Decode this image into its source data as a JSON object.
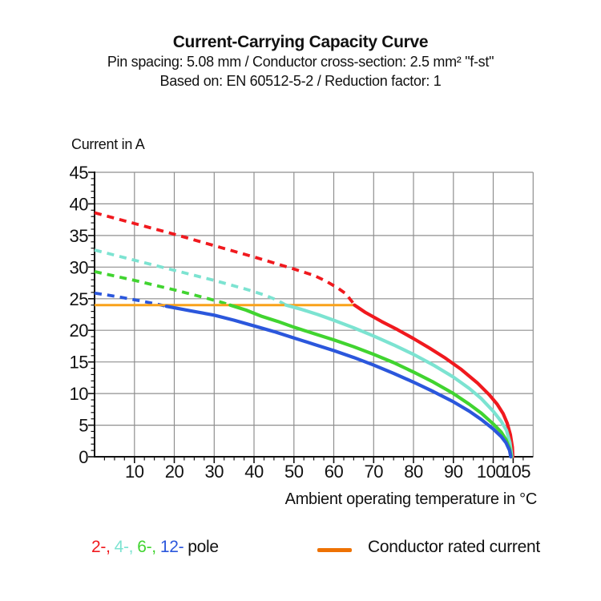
{
  "header": {
    "title": "Current-Carrying Capacity Curve",
    "subtitle1": "Pin spacing: 5.08 mm / Conductor cross-section: 2.5 mm² \"f-st\"",
    "subtitle2": "Based on: EN 60512-5-2 / Reduction factor: 1"
  },
  "chart_data": {
    "type": "line",
    "title": "Current-Carrying Capacity Curve",
    "xlabel": "Ambient operating temperature in °C",
    "ylabel": "Current in A",
    "xlim": [
      0,
      110
    ],
    "ylim": [
      0,
      45
    ],
    "grid": true,
    "grid_color": "#8F8F8F",
    "axis_color": "#111111",
    "x_gridlines": [
      10,
      20,
      30,
      40,
      50,
      60,
      70,
      80,
      90,
      100
    ],
    "x_major_ticks": [
      10,
      20,
      30,
      40,
      50,
      60,
      70,
      80,
      90,
      100,
      105
    ],
    "x_tick_labels": [
      "10",
      "20",
      "30",
      "40",
      "50",
      "60",
      "70",
      "80",
      "90",
      "100",
      "105"
    ],
    "x_minor_step": 2.5,
    "y_gridlines": [
      5,
      10,
      15,
      20,
      25,
      30,
      35,
      40,
      45
    ],
    "y_major_ticks": [
      0,
      5,
      10,
      15,
      20,
      25,
      30,
      35,
      40,
      45
    ],
    "y_tick_labels": [
      "0",
      "5",
      "10",
      "15",
      "20",
      "25",
      "30",
      "35",
      "40",
      "45"
    ],
    "y_minor_step": 1,
    "rated_current": {
      "value": 24,
      "x_start": 0,
      "x_end": 65,
      "color": "#F9A21B",
      "label": "Conductor rated current"
    },
    "series": [
      {
        "name": "2-pole",
        "color": "#F0191E",
        "dashed": [
          [
            0,
            38.6
          ],
          [
            10,
            36.9
          ],
          [
            20,
            35.2
          ],
          [
            30,
            33.4
          ],
          [
            40,
            31.6
          ],
          [
            50,
            29.7
          ],
          [
            55,
            28.7
          ],
          [
            58,
            27.8
          ],
          [
            61,
            26.7
          ],
          [
            63,
            25.8
          ],
          [
            64.5,
            24.6
          ],
          [
            65.2,
            24.0
          ]
        ],
        "solid": [
          [
            65.2,
            24.0
          ],
          [
            68,
            22.8
          ],
          [
            72,
            21.4
          ],
          [
            76,
            20.1
          ],
          [
            80,
            18.7
          ],
          [
            84,
            17.2
          ],
          [
            88,
            15.6
          ],
          [
            92,
            13.8
          ],
          [
            96,
            11.7
          ],
          [
            99,
            9.8
          ],
          [
            101,
            8.3
          ],
          [
            102.5,
            6.8
          ],
          [
            103.5,
            5.3
          ],
          [
            104.3,
            3.5
          ],
          [
            104.8,
            1.5
          ],
          [
            104.9,
            0
          ]
        ]
      },
      {
        "name": "4-pole",
        "color": "#7CE3D1",
        "dashed": [
          [
            0,
            32.7
          ],
          [
            10,
            31.1
          ],
          [
            20,
            29.5
          ],
          [
            30,
            27.9
          ],
          [
            38,
            26.5
          ],
          [
            43,
            25.5
          ],
          [
            46,
            24.7
          ],
          [
            48,
            24.0
          ]
        ],
        "solid": [
          [
            48,
            24.0
          ],
          [
            52,
            23.3
          ],
          [
            56,
            22.5
          ],
          [
            60,
            21.6
          ],
          [
            65,
            20.4
          ],
          [
            70,
            19.1
          ],
          [
            75,
            17.7
          ],
          [
            80,
            16.2
          ],
          [
            85,
            14.5
          ],
          [
            90,
            12.6
          ],
          [
            94,
            10.8
          ],
          [
            97,
            9.2
          ],
          [
            100,
            7.2
          ],
          [
            102,
            5.6
          ],
          [
            103.3,
            4.2
          ],
          [
            104.2,
            2.2
          ],
          [
            104.65,
            0
          ]
        ]
      },
      {
        "name": "6-pole",
        "color": "#41D430",
        "dashed": [
          [
            0,
            29.3
          ],
          [
            10,
            27.9
          ],
          [
            20,
            26.4
          ],
          [
            28,
            25.1
          ],
          [
            32,
            24.4
          ],
          [
            34,
            24.0
          ]
        ],
        "solid": [
          [
            34,
            24.0
          ],
          [
            38,
            23.2
          ],
          [
            42,
            22.2
          ],
          [
            46,
            21.4
          ],
          [
            50,
            20.5
          ],
          [
            55,
            19.5
          ],
          [
            60,
            18.5
          ],
          [
            65,
            17.4
          ],
          [
            70,
            16.2
          ],
          [
            75,
            14.9
          ],
          [
            80,
            13.4
          ],
          [
            85,
            11.8
          ],
          [
            90,
            10.0
          ],
          [
            94,
            8.3
          ],
          [
            97,
            6.9
          ],
          [
            100,
            5.2
          ],
          [
            102,
            3.9
          ],
          [
            103.2,
            2.7
          ],
          [
            104.1,
            1.3
          ],
          [
            104.5,
            0
          ]
        ]
      },
      {
        "name": "12-pole",
        "color": "#2B57DC",
        "dashed": [
          [
            0,
            25.9
          ],
          [
            6,
            25.3
          ],
          [
            12,
            24.6
          ],
          [
            16,
            24.1
          ],
          [
            18,
            23.8
          ]
        ],
        "solid": [
          [
            18,
            23.8
          ],
          [
            24,
            23.1
          ],
          [
            30,
            22.4
          ],
          [
            35,
            21.6
          ],
          [
            40,
            20.7
          ],
          [
            45,
            19.8
          ],
          [
            50,
            18.8
          ],
          [
            55,
            17.8
          ],
          [
            60,
            16.8
          ],
          [
            65,
            15.7
          ],
          [
            70,
            14.5
          ],
          [
            75,
            13.2
          ],
          [
            80,
            11.8
          ],
          [
            85,
            10.3
          ],
          [
            90,
            8.7
          ],
          [
            94,
            7.2
          ],
          [
            97,
            5.9
          ],
          [
            100,
            4.4
          ],
          [
            102,
            3.2
          ],
          [
            103.2,
            2.2
          ],
          [
            104.1,
            1.0
          ],
          [
            104.4,
            0
          ]
        ]
      }
    ]
  },
  "legend": {
    "pole_segments": [
      {
        "text": "2-,",
        "color": "#F0191E"
      },
      {
        "text": "4-,",
        "color": "#7CE3D1"
      },
      {
        "text": "6-,",
        "color": "#41D430"
      },
      {
        "text": "12-",
        "color": "#2B57DC"
      },
      {
        "text": "pole",
        "color": "#111111"
      }
    ],
    "rated_swatch_color": "#EE7203",
    "rated_label": "Conductor rated current"
  }
}
